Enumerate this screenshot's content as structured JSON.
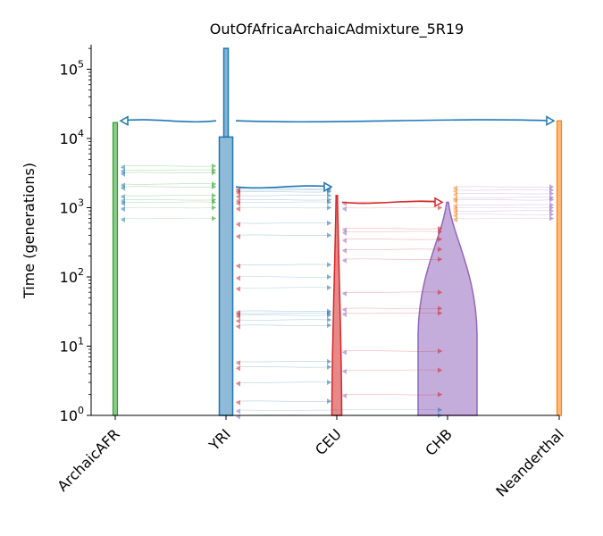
{
  "chart_data": {
    "type": "demes",
    "title": "OutOfAfricaArchaicAdmixture_5R19",
    "ylabel": "Time (generations)",
    "yscale": "log",
    "ylim": [
      1,
      200000
    ],
    "y_ticks": [
      {
        "base": "10",
        "exp": "0",
        "value": 1
      },
      {
        "base": "10",
        "exp": "1",
        "value": 10
      },
      {
        "base": "10",
        "exp": "2",
        "value": 100
      },
      {
        "base": "10",
        "exp": "3",
        "value": 1000
      },
      {
        "base": "10",
        "exp": "4",
        "value": 10000
      },
      {
        "base": "10",
        "exp": "5",
        "value": 100000
      }
    ],
    "demes": [
      {
        "name": "ArchaicAFR",
        "color": "#2ca02c",
        "start_time": 17000,
        "end_time": 1,
        "width": "thin"
      },
      {
        "name": "YRI",
        "color": "#1f77b4",
        "ancestral_start": 200000,
        "start_time": 10500,
        "end_time": 1,
        "width": "wide"
      },
      {
        "name": "CEU",
        "color": "#d62728",
        "start_time": 1500,
        "end_time": 1,
        "width": "growing"
      },
      {
        "name": "CHB",
        "color": "#9467bd",
        "start_time": 1200,
        "end_time": 1,
        "width": "growing"
      },
      {
        "name": "Neanderthal",
        "color": "#ff7f0e",
        "start_time": 18000,
        "end_time": 1,
        "width": "thin"
      }
    ],
    "splits": [
      {
        "source": "YRI",
        "dest": "ArchaicAFR",
        "time": 18000
      },
      {
        "source": "YRI",
        "dest": "Neanderthal",
        "time": 18000
      },
      {
        "source": "YRI",
        "dest": "CEU",
        "time": 2000
      },
      {
        "source": "CEU",
        "dest": "CHB",
        "time": 1200
      }
    ],
    "migration_times": {
      "ArchaicAFR_YRI": [
        4000,
        3500,
        3200,
        2200,
        2000,
        1500,
        1300,
        1200,
        1000,
        700
      ],
      "YRI_CEU": [
        1900,
        1800,
        1700,
        1500,
        1300,
        1200,
        1000,
        600,
        400,
        150,
        100,
        70,
        32,
        30,
        28,
        24,
        20,
        6,
        5,
        3,
        1.6
      ],
      "CEU_CHB": [
        1200,
        1000,
        500,
        450,
        350,
        250,
        180,
        60,
        35,
        30,
        8.5,
        4.5,
        2
      ],
      "CHB_Neanderthal": [
        2000,
        1800,
        1600,
        1400,
        1300,
        1100,
        1000,
        900,
        800,
        700
      ],
      "YRI_CHB": [
        1,
        1.2
      ]
    },
    "grid": false
  }
}
